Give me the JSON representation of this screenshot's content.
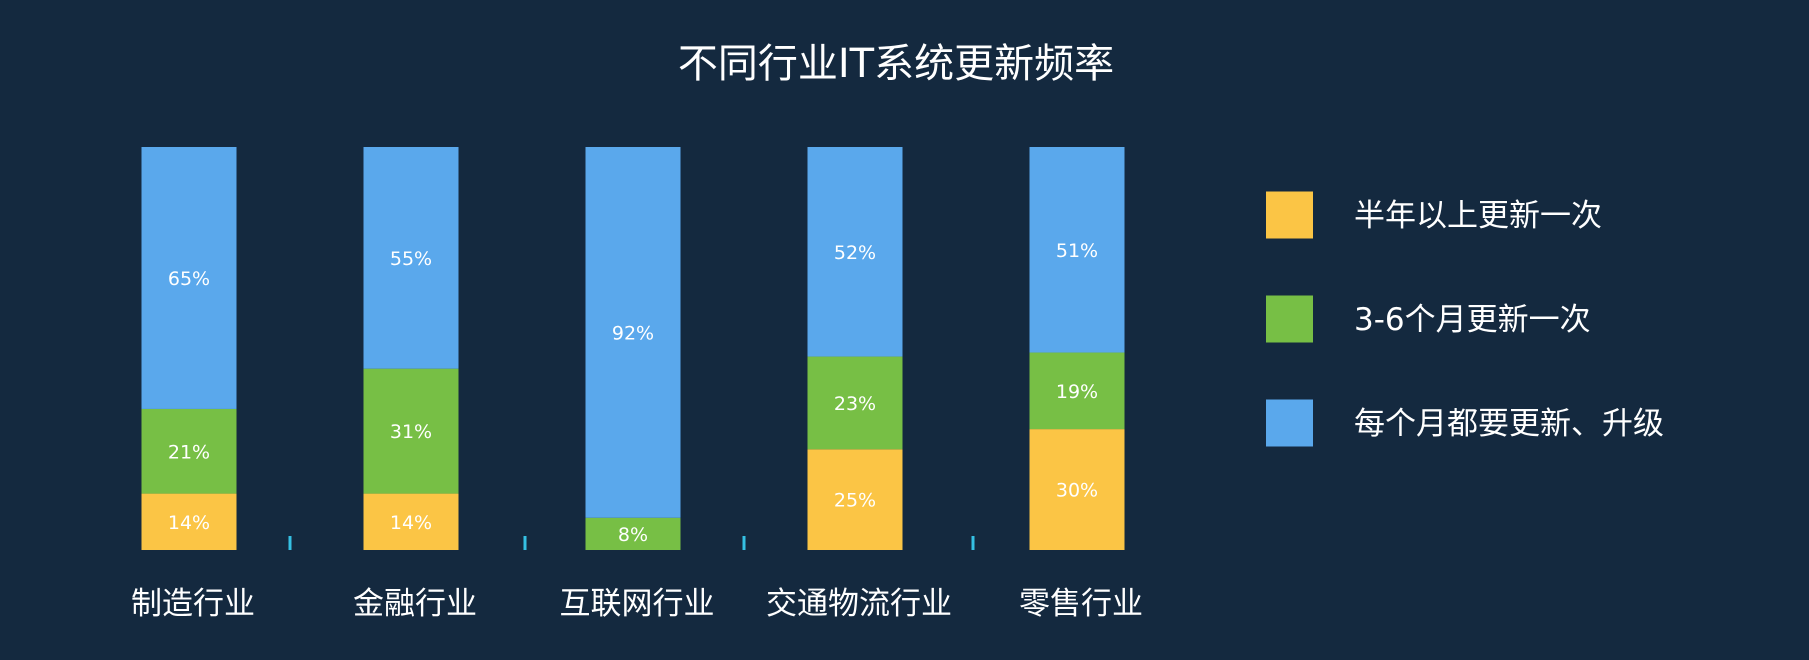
{
  "chart_data": {
    "type": "bar",
    "stacked": true,
    "title": "不同行业IT系统更新频率",
    "xlabel": "",
    "ylabel": "",
    "ylim": [
      0,
      100
    ],
    "grid": false,
    "legend_position": "right",
    "categories": [
      "制造行业",
      "金融行业",
      "互联网行业",
      "交通物流行业",
      "零售行业"
    ],
    "series": [
      {
        "name": "半年以上更新一次",
        "color": "#fbc545",
        "values": [
          14,
          14,
          0,
          25,
          30
        ],
        "labels": [
          "14%",
          "14%",
          "",
          "25%",
          "30%"
        ]
      },
      {
        "name": "3-6个月更新一次",
        "color": "#77bf45",
        "values": [
          21,
          31,
          8,
          23,
          19
        ],
        "labels": [
          "21%",
          "31%",
          "8%",
          "23%",
          "19%"
        ]
      },
      {
        "name": "每个月都要更新、升级",
        "color": "#5aa8ec",
        "values": [
          65,
          55,
          92,
          52,
          51
        ],
        "labels": [
          "65%",
          "55%",
          "92%",
          "52%",
          "51%"
        ]
      }
    ],
    "axis_color": "#35c0e3"
  }
}
